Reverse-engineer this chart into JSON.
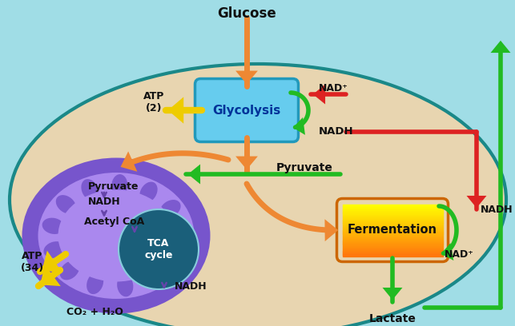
{
  "bg_outer": "#a0dde6",
  "bg_cell": "#e8d5b0",
  "cell_edge": "#1a8888",
  "mito_outer": "#7755cc",
  "mito_inner": "#aa88ee",
  "tca_circle": "#1a5f7a",
  "glycolysis_box": "#66ccee",
  "glycolysis_edge": "#2299bb",
  "fermentation_grad_top": "#ffdd00",
  "fermentation_grad_bot": "#ff8800",
  "fermentation_edge": "#cc6600",
  "arrow_orange": "#ee8833",
  "arrow_yellow": "#eecc00",
  "arrow_green": "#22bb22",
  "arrow_red": "#dd2222",
  "text_dark": "#111111",
  "text_white": "#ffffff",
  "text_glycolysis": "#003399",
  "glucose_label": "Glucose",
  "glycolysis_label": "Glycolysis",
  "fermentation_label": "Fermentation",
  "tca_label": "TCA\ncycle",
  "pyruvate_mito": "Pyruvate",
  "nadh_mito": "NADH",
  "acetyl_label": "Acetyl CoA",
  "nadh_tca": "NADH",
  "atp2_label": "ATP\n(2)",
  "atp34_label": "ATP\n(34)",
  "co2_label": "CO₂ + H₂O",
  "pyruvate_center": "Pyruvate",
  "nad_glyc": "NAD⁺",
  "nadh_glyc": "NADH",
  "nadh_ferm": "NADH",
  "nad_ferm": "NAD⁺",
  "lactate_label": "Lactate"
}
